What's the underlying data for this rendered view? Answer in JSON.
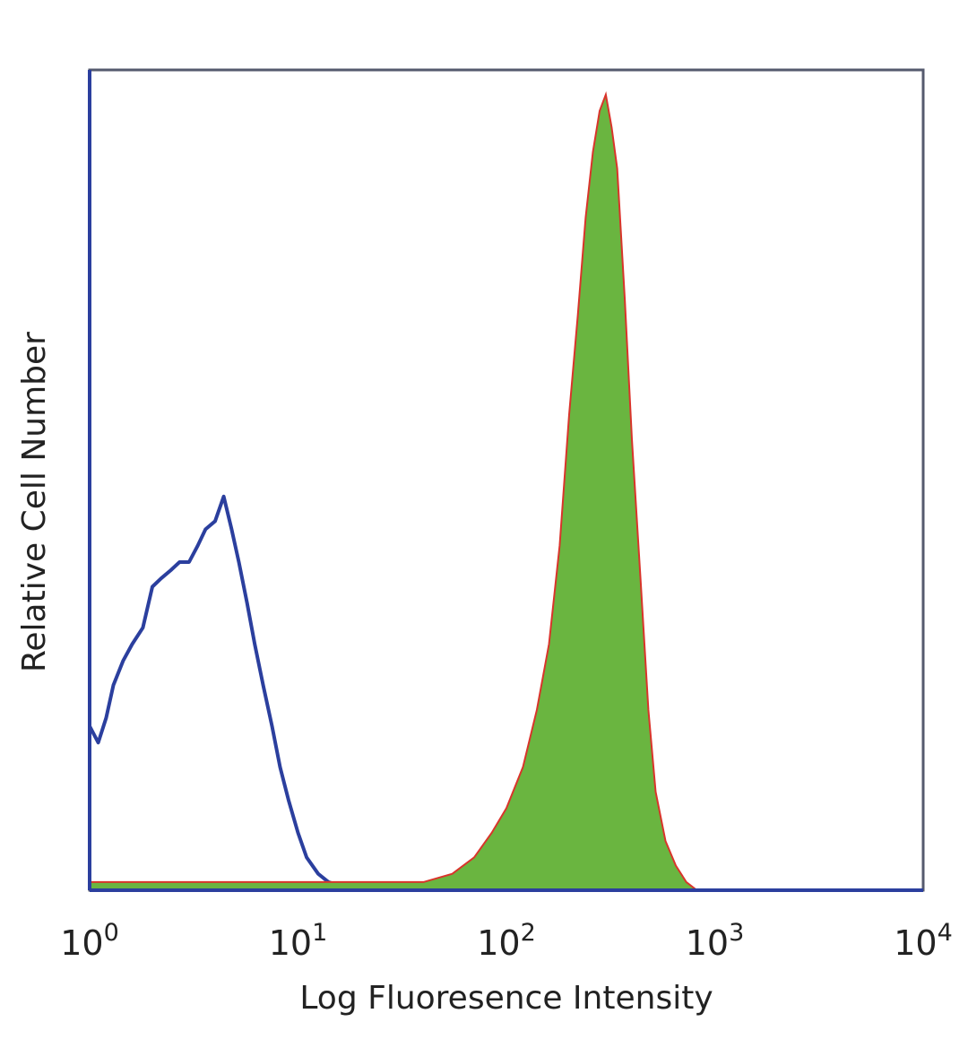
{
  "chart_data": {
    "type": "area",
    "title": "",
    "xlabel": "Log Fluoresence Intensity",
    "ylabel": "Relative Cell Number",
    "x_scale": "log",
    "xlim": [
      1,
      10000
    ],
    "ylim": [
      0,
      1
    ],
    "grid": false,
    "legend": "none",
    "x_ticks": [
      {
        "base": "10",
        "exp": "0",
        "value": 1
      },
      {
        "base": "10",
        "exp": "1",
        "value": 10
      },
      {
        "base": "10",
        "exp": "2",
        "value": 100
      },
      {
        "base": "10",
        "exp": "3",
        "value": 1000
      },
      {
        "base": "10",
        "exp": "4",
        "value": 10000
      }
    ],
    "series": [
      {
        "style": "line",
        "color": "#2b3f9e",
        "x": [
          1.0,
          1.1,
          1.2,
          1.3,
          1.45,
          1.6,
          1.8,
          2.0,
          2.2,
          2.45,
          2.7,
          3.0,
          3.3,
          3.6,
          4.0,
          4.4,
          4.8,
          5.2,
          5.7,
          6.2,
          6.8,
          7.5,
          8.2,
          9.0,
          10.0,
          11.0,
          12.5,
          14.0,
          16.0,
          18.0,
          20.0
        ],
        "y": [
          0.2,
          0.18,
          0.21,
          0.25,
          0.28,
          0.3,
          0.32,
          0.37,
          0.38,
          0.39,
          0.4,
          0.4,
          0.42,
          0.44,
          0.45,
          0.48,
          0.44,
          0.4,
          0.35,
          0.3,
          0.25,
          0.2,
          0.15,
          0.11,
          0.07,
          0.04,
          0.02,
          0.01,
          0.005,
          0.002,
          0.0
        ]
      },
      {
        "style": "filled",
        "color": "#6ab540",
        "edge_color": "#d9342b",
        "x": [
          1.0,
          2.0,
          5.0,
          10.0,
          20.0,
          40.0,
          55.0,
          70.0,
          85.0,
          100.0,
          120.0,
          140.0,
          160.0,
          180.0,
          200.0,
          220.0,
          240.0,
          260.0,
          280.0,
          300.0,
          320.0,
          340.0,
          370.0,
          400.0,
          440.0,
          480.0,
          520.0,
          580.0,
          650.0,
          730.0,
          820.0,
          900.0
        ],
        "y": [
          0.01,
          0.01,
          0.01,
          0.01,
          0.01,
          0.01,
          0.02,
          0.04,
          0.07,
          0.1,
          0.15,
          0.22,
          0.3,
          0.42,
          0.58,
          0.7,
          0.82,
          0.9,
          0.95,
          0.97,
          0.93,
          0.88,
          0.72,
          0.55,
          0.38,
          0.22,
          0.12,
          0.06,
          0.03,
          0.01,
          0.0,
          0.0
        ]
      }
    ]
  }
}
